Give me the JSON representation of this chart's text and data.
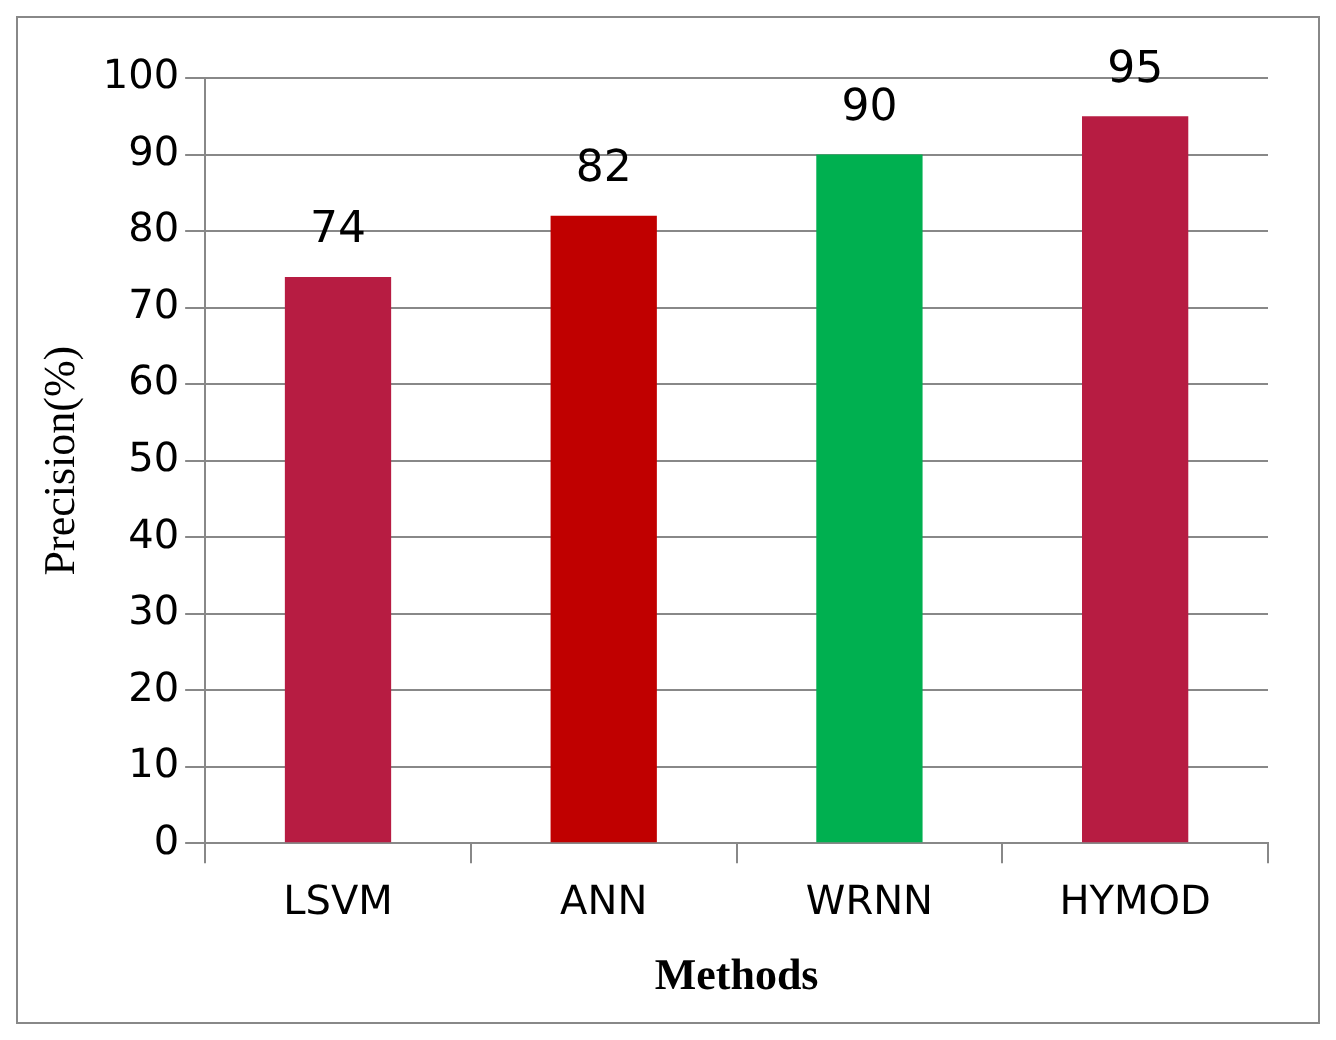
{
  "chart_data": {
    "type": "bar",
    "xlabel": "Methods",
    "ylabel": "Precision(%)",
    "categories": [
      "LSVM",
      "ANN",
      "WRNN",
      "HYMOD"
    ],
    "values": [
      74,
      82,
      90,
      95
    ],
    "colors": [
      "#b71c42",
      "#c00000",
      "#00b050",
      "#b71c42"
    ],
    "ylim": [
      0,
      100
    ],
    "yticks": [
      0,
      10,
      20,
      30,
      40,
      50,
      60,
      70,
      80,
      90,
      100
    ],
    "grid": "y",
    "data_labels": true
  }
}
